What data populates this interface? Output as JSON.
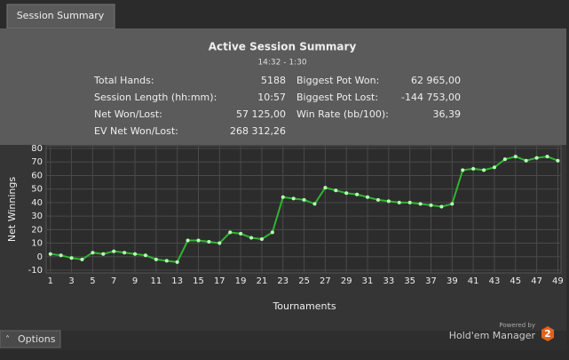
{
  "tab": "Session Summary",
  "summary": {
    "title": "Active Session Summary",
    "time": "14:32 - 1:30",
    "left": [
      {
        "label": "Total Hands:",
        "value": "5188"
      },
      {
        "label": "Session Length (hh:mm):",
        "value": "10:57"
      },
      {
        "label": "Net Won/Lost:",
        "value": "57 125,00"
      },
      {
        "label": "EV Net Won/Lost:",
        "value": "268 312,26"
      }
    ],
    "right": [
      {
        "label": "Biggest Pot Won:",
        "value": "62 965,00"
      },
      {
        "label": "Biggest Pot Lost:",
        "value": "-144 753,00"
      },
      {
        "label": "Win Rate (bb/100):",
        "value": "36,39"
      }
    ]
  },
  "chart_data": {
    "type": "line",
    "y_label": "Net Winnings",
    "x_label": "Tournaments",
    "x": [
      1,
      2,
      3,
      4,
      5,
      6,
      7,
      8,
      9,
      10,
      11,
      12,
      13,
      14,
      15,
      16,
      17,
      18,
      19,
      20,
      21,
      22,
      23,
      24,
      25,
      26,
      27,
      28,
      29,
      30,
      31,
      32,
      33,
      34,
      35,
      36,
      37,
      38,
      39,
      40,
      41,
      42,
      43,
      44,
      45,
      46,
      47,
      48,
      49
    ],
    "series": [
      {
        "name": "Net Winnings",
        "color": "#2fb52f",
        "values": [
          2,
          1,
          -1,
          -2,
          3,
          2,
          4,
          3,
          2,
          1,
          -2,
          -3,
          -4,
          12,
          12,
          11,
          10,
          18,
          17,
          14,
          13,
          18,
          44,
          43,
          42,
          39,
          51,
          49,
          47,
          46,
          44,
          42,
          41,
          40,
          40,
          39,
          38,
          37,
          39,
          64,
          65,
          64,
          66,
          72,
          74,
          71,
          73,
          74,
          71
        ]
      }
    ],
    "xlim": [
      0.6,
      49.3
    ],
    "xticks": [
      1,
      3,
      5,
      7,
      9,
      11,
      13,
      15,
      17,
      19,
      21,
      23,
      25,
      27,
      29,
      31,
      33,
      35,
      37,
      39,
      41,
      43,
      45,
      47,
      49
    ],
    "ylim": [
      -10,
      80
    ],
    "yticks": [
      -10,
      0,
      10,
      20,
      30,
      40,
      50,
      60,
      70,
      80
    ],
    "grid": true
  },
  "options": "Options",
  "brand": {
    "powered": "Powered by",
    "name": "Hold'em Manager",
    "badge": "2"
  }
}
